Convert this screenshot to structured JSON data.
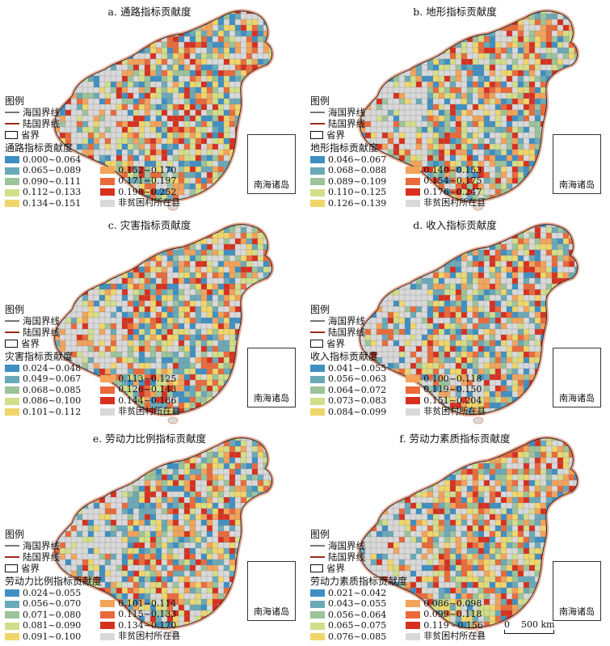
{
  "legend_title": "图例",
  "sea_boundary": "海国界线",
  "land_boundary": "陆国界线",
  "province_boundary": "省界",
  "nonpoor": "非贫困村所在县",
  "inset_label": "南海诸岛",
  "scale_label": "0    500 km",
  "colors": {
    "c1": "#3f8fc2",
    "c2": "#6aa9b8",
    "c3": "#9cc39a",
    "c4": "#d3de8a",
    "c5": "#f0d66a",
    "c6": "#f3a35a",
    "c7": "#ea6a3a",
    "c8": "#d8301f",
    "nonpoor": "#d9d9d9",
    "border_glow": "#e6a48e",
    "sea_line": "#777777",
    "land_line": "#9b2a1c"
  },
  "panels": [
    {
      "title": "a. 通路指标贡献度",
      "class_title": "通路指标贡献度",
      "classes": [
        "0.000~0.064",
        "0.065~0.089",
        "0.090~0.111",
        "0.112~0.133",
        "0.134~0.151",
        "0.152~0.170",
        "0.171~0.197",
        "0.198~0.252"
      ]
    },
    {
      "title": "b. 地形指标贡献度",
      "class_title": "地形指标贡献度",
      "classes": [
        "0.046~0.067",
        "0.068~0.088",
        "0.089~0.109",
        "0.110~0.125",
        "0.126~0.139",
        "0.140~0.153",
        "0.154~0.175",
        "0.176~0.247"
      ]
    },
    {
      "title": "c. 灾害指标贡献度",
      "class_title": "灾害指标贡献度",
      "classes": [
        "0.024~0.048",
        "0.049~0.067",
        "0.068~0.085",
        "0.086~0.100",
        "0.101~0.112",
        "0.113~0.125",
        "0.126~0.143",
        "0.144~0.186"
      ]
    },
    {
      "title": "d. 收入指标贡献度",
      "class_title": "收入指标贡献度",
      "classes": [
        "0.041~0.055",
        "0.056~0.063",
        "0.064~0.072",
        "0.073~0.083",
        "0.084~0.099",
        "0.100~0.118",
        "0.119~0.150",
        "0.151~0.204"
      ]
    },
    {
      "title": "e. 劳动力比例指标贡献度",
      "class_title": "劳动力比例指标贡献度",
      "classes": [
        "0.024~0.055",
        "0.056~0.070",
        "0.071~0.080",
        "0.081~0.090",
        "0.091~0.100",
        "0.101~0.114",
        "0.115~0.133",
        "0.134~0.170"
      ]
    },
    {
      "title": "f. 劳动力素质指标贡献度",
      "class_title": "劳动力素质指标贡献度",
      "classes": [
        "0.021~0.042",
        "0.043~0.055",
        "0.056~0.064",
        "0.065~0.075",
        "0.076~0.085",
        "0.086~0.098",
        "0.099~0.118",
        "0.119 - 0.156"
      ]
    }
  ]
}
